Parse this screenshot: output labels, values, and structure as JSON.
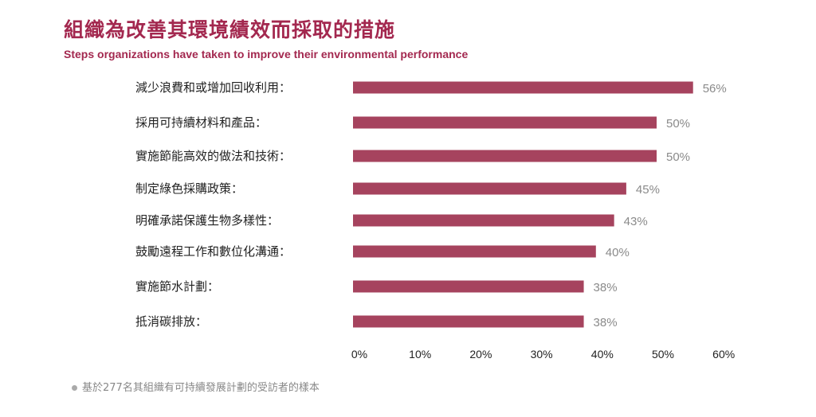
{
  "chart_data": {
    "type": "bar",
    "orientation": "horizontal",
    "title": "組織為改善其環境績效而採取的措施",
    "subtitle": "Steps organizations have taken to improve their environmental performance",
    "categories": [
      "減少浪費和或增加回收利用：",
      "採用可持續材料和產品：",
      "實施節能高效的做法和技術：",
      "制定綠色採購政策：",
      "明確承諾保護生物多樣性：",
      "鼓勵遠程工作和數位化溝通：",
      "實施節水計劃：",
      "抵消碳排放："
    ],
    "values": [
      56,
      50,
      50,
      45,
      43,
      40,
      38,
      38
    ],
    "data_labels": [
      "56%",
      "50%",
      "50%",
      "45%",
      "43%",
      "40%",
      "38%",
      "38%"
    ],
    "xlim": [
      0,
      60
    ],
    "x_ticks": [
      "0%",
      "10%",
      "20%",
      "30%",
      "40%",
      "50%",
      "60%"
    ],
    "grid": false,
    "note": "基於277名其組織有可持續發展計劃的受訪者的樣本",
    "colors": {
      "bar": "#a6435e",
      "title": "#a3284f"
    }
  }
}
